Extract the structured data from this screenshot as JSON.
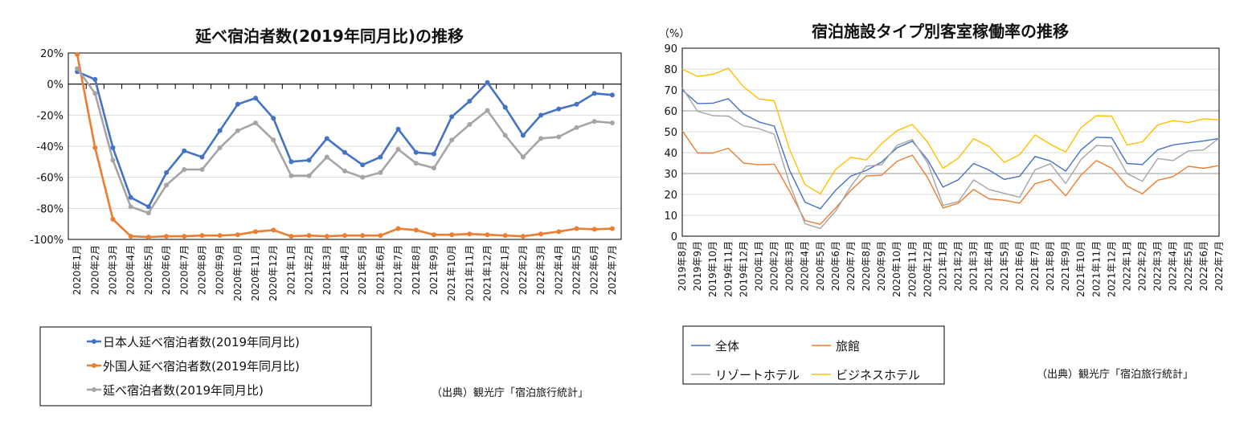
{
  "chart_data": [
    {
      "type": "line",
      "title": "延べ宿泊者数(2019年同月比)の推移",
      "xlabel": "",
      "ylabel": "",
      "ylim": [
        -100,
        20
      ],
      "yticks": [
        "20%",
        "0%",
        "-20%",
        "-40%",
        "-60%",
        "-80%",
        "-100%"
      ],
      "ytick_values": [
        20,
        0,
        -20,
        -40,
        -60,
        -80,
        -100
      ],
      "grid": true,
      "legend_position": "bottom-left",
      "categories": [
        "2020年1月",
        "2020年2月",
        "2020年3月",
        "2020年4月",
        "2020年5月",
        "2020年6月",
        "2020年7月",
        "2020年8月",
        "2020年9月",
        "2020年10月",
        "2020年11月",
        "2020年12月",
        "2021年1月",
        "2021年2月",
        "2021年3月",
        "2021年4月",
        "2021年5月",
        "2021年6月",
        "2021年7月",
        "2021年8月",
        "2021年9月",
        "2021年10月",
        "2021年11月",
        "2021年12月",
        "2022年1月",
        "2022年2月",
        "2022年3月",
        "2022年4月",
        "2022年5月",
        "2022年6月",
        "2022年7月"
      ],
      "series": [
        {
          "name": "日本人延べ宿泊者数(2019年同月比)",
          "color": "#4472C4",
          "values": [
            8,
            3,
            -41,
            -73,
            -79,
            -57,
            -43,
            -47,
            -30,
            -13,
            -9,
            -22,
            -50,
            -49,
            -35,
            -44,
            -52,
            -47,
            -29,
            -44,
            -45,
            -21,
            -11,
            1,
            -15,
            -33,
            -20,
            -16,
            -13,
            -6,
            -7
          ]
        },
        {
          "name": "外国人延べ宿泊者数(2019年同月比)",
          "color": "#ED7D31",
          "values": [
            19,
            -41,
            -87,
            -98,
            -98.5,
            -98,
            -98,
            -97.5,
            -97.5,
            -97,
            -95,
            -94,
            -98,
            -97.5,
            -98,
            -97.5,
            -97.5,
            -97.5,
            -93,
            -94,
            -97,
            -97,
            -96.5,
            -97,
            -97.5,
            -98,
            -96.5,
            -95,
            -93,
            -93.5,
            -93
          ]
        },
        {
          "name": "延べ宿泊者数(2019年同月比)",
          "color": "#A5A5A5",
          "values": [
            10,
            -6,
            -49,
            -79,
            -83,
            -65,
            -55,
            -55,
            -41,
            -30,
            -25,
            -36,
            -59,
            -59,
            -47,
            -56,
            -60,
            -57,
            -42,
            -51,
            -54,
            -36,
            -26,
            -17,
            -33,
            -47,
            -35,
            -34,
            -28,
            -24,
            -25
          ]
        }
      ],
      "source": "（出典）観光庁「宿泊旅行統計」"
    },
    {
      "type": "line",
      "title": "宿泊施設タイプ別客室稼働率の推移",
      "xlabel": "",
      "ylabel": "（%）",
      "ylim": [
        0,
        90
      ],
      "yticks": [
        "90",
        "80",
        "70",
        "60",
        "50",
        "40",
        "30",
        "20",
        "10",
        "0"
      ],
      "ytick_values": [
        90,
        80,
        70,
        60,
        50,
        40,
        30,
        20,
        10,
        0
      ],
      "grid": true,
      "legend_position": "bottom-left",
      "categories": [
        "2019年8月",
        "2019年9月",
        "2019年10月",
        "2019年11月",
        "2019年12月",
        "2020年1月",
        "2020年2月",
        "2020年3月",
        "2020年4月",
        "2020年5月",
        "2020年6月",
        "2020年7月",
        "2020年8月",
        "2020年9月",
        "2020年10月",
        "2020年11月",
        "2020年12月",
        "2021年1月",
        "2021年2月",
        "2021年3月",
        "2021年4月",
        "2021年5月",
        "2021年6月",
        "2021年7月",
        "2021年8月",
        "2021年9月",
        "2021年10月",
        "2021年11月",
        "2021年12月",
        "2022年1月",
        "2022年2月",
        "2022年3月",
        "2022年4月",
        "2022年5月",
        "2022年6月",
        "2022年7月"
      ],
      "series": [
        {
          "name": "全体",
          "color": "#4472C4",
          "values": [
            70,
            63.5,
            63.7,
            65.8,
            58.5,
            54.7,
            52.7,
            31.5,
            16.3,
            13.1,
            22,
            28.8,
            31.5,
            35.5,
            42.3,
            45.5,
            36.5,
            23.5,
            27,
            34.8,
            31.7,
            27.2,
            28.7,
            38.2,
            36,
            31.1,
            41.3,
            47.4,
            47.1,
            34.8,
            34.3,
            41.4,
            43.7,
            44.7,
            45.6,
            46.8
          ]
        },
        {
          "name": "旅館",
          "color": "#ED7D31",
          "values": [
            50.5,
            39.8,
            39.8,
            42.1,
            35,
            34.2,
            34.5,
            21.5,
            7.5,
            5.7,
            13.5,
            22,
            28.8,
            29.2,
            35.8,
            38.8,
            28,
            13.5,
            15.8,
            22.4,
            17.9,
            17.2,
            15.8,
            25.1,
            27.2,
            19.3,
            29.2,
            36.2,
            32.6,
            24,
            20.3,
            26.8,
            28.5,
            33.5,
            32.5,
            33.8
          ]
        },
        {
          "name": "リゾートホテル",
          "color": "#A5A5A5",
          "values": [
            71,
            59.8,
            57.7,
            57.5,
            52.8,
            51.5,
            48.8,
            25,
            6,
            3.7,
            12,
            24,
            33.5,
            34.2,
            43.5,
            46.3,
            35,
            14.8,
            16.5,
            27,
            22.4,
            20.5,
            18.6,
            31.8,
            34.7,
            25.2,
            36.7,
            43.4,
            43.1,
            30,
            26.3,
            37.2,
            36.2,
            40.8,
            41.3,
            46.9
          ]
        },
        {
          "name": "ビジネスホテル",
          "color": "#FFC000",
          "values": [
            80,
            76.5,
            77.5,
            80.4,
            71.5,
            65.7,
            64.8,
            41.5,
            24.7,
            20.3,
            32,
            37.8,
            36.5,
            44.3,
            50.5,
            53.5,
            45,
            32.5,
            37.4,
            46.7,
            43,
            35.4,
            39,
            48.5,
            44,
            40.3,
            52,
            57.7,
            57.5,
            43.7,
            45.2,
            53.3,
            55.3,
            54.4,
            56.2,
            55.7
          ]
        }
      ],
      "source": "（出典）観光庁「宿泊旅行統計」"
    }
  ]
}
